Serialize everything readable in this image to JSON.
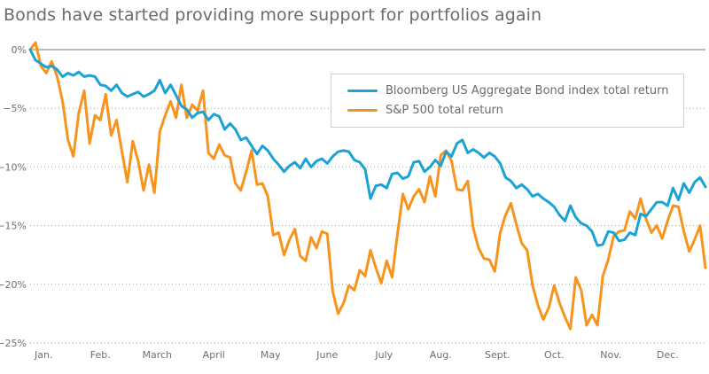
{
  "chart_data": {
    "type": "line",
    "title": "Bonds have started providing more support for portfolios again",
    "xlabel": "",
    "ylabel": "",
    "ylim": [
      -25,
      0
    ],
    "xlim": [
      0,
      250
    ],
    "yticks": [
      0,
      -5,
      -10,
      -15,
      -20,
      -25
    ],
    "ytick_labels": [
      "0%",
      "−5%",
      "−10%",
      "−15%",
      "−20%",
      "−25%"
    ],
    "xtick_labels": [
      "Jan.",
      "Feb.",
      "March",
      "April",
      "May",
      "June",
      "July",
      "Aug.",
      "Sept.",
      "Oct.",
      "Nov.",
      "Dec."
    ],
    "xtick_positions": [
      5,
      26,
      47,
      68,
      89,
      110,
      131,
      152,
      173,
      194,
      215,
      236
    ],
    "grid": "horizontal dotted",
    "legend_position": "top-right",
    "series": [
      {
        "name": "Bloomberg US Aggregate Bond index total return",
        "color": "#1aa3d4",
        "x": [
          0,
          2,
          4,
          6,
          8,
          10,
          12,
          14,
          16,
          18,
          20,
          22,
          24,
          26,
          28,
          30,
          32,
          34,
          36,
          38,
          40,
          42,
          44,
          46,
          48,
          50,
          52,
          54,
          56,
          58,
          60,
          62,
          64,
          66,
          68,
          70,
          72,
          74,
          76,
          78,
          80,
          82,
          84,
          86,
          88,
          90,
          92,
          94,
          96,
          98,
          100,
          102,
          104,
          106,
          108,
          110,
          112,
          114,
          116,
          118,
          120,
          122,
          124,
          126,
          128,
          130,
          132,
          134,
          136,
          138,
          140,
          142,
          144,
          146,
          148,
          150,
          152,
          154,
          156,
          158,
          160,
          162,
          164,
          166,
          168,
          170,
          172,
          174,
          176,
          178,
          180,
          182,
          184,
          186,
          188,
          190,
          192,
          194,
          196,
          198,
          200,
          202,
          204,
          206,
          208,
          210,
          212,
          214,
          216,
          218,
          220,
          222,
          224,
          226,
          228,
          230,
          232,
          234,
          236,
          238,
          240,
          242,
          244,
          246,
          248,
          250
        ],
        "values": [
          0,
          -0.9,
          -1.2,
          -1.5,
          -1.4,
          -1.7,
          -2.3,
          -2.0,
          -2.2,
          -1.9,
          -2.3,
          -2.2,
          -2.3,
          -3.0,
          -3.1,
          -3.5,
          -3.0,
          -3.7,
          -4.0,
          -3.8,
          -3.6,
          -4.0,
          -3.8,
          -3.5,
          -2.6,
          -3.7,
          -3.0,
          -3.9,
          -4.8,
          -5.1,
          -5.8,
          -5.4,
          -5.3,
          -6.0,
          -5.5,
          -5.7,
          -6.8,
          -6.3,
          -6.8,
          -7.7,
          -7.5,
          -8.2,
          -8.9,
          -8.2,
          -8.6,
          -9.3,
          -9.8,
          -10.4,
          -9.9,
          -9.6,
          -10.1,
          -9.3,
          -10.0,
          -9.5,
          -9.3,
          -9.7,
          -9.1,
          -8.7,
          -8.6,
          -8.7,
          -9.4,
          -9.6,
          -10.2,
          -12.7,
          -11.6,
          -11.5,
          -11.8,
          -10.6,
          -10.5,
          -11.0,
          -10.8,
          -9.6,
          -9.5,
          -10.4,
          -10.0,
          -9.4,
          -9.9,
          -8.7,
          -9.1,
          -8.0,
          -7.7,
          -8.8,
          -8.5,
          -8.8,
          -9.2,
          -8.8,
          -9.1,
          -9.7,
          -10.9,
          -11.2,
          -11.8,
          -11.5,
          -11.9,
          -12.5,
          -12.3,
          -12.7,
          -13.0,
          -13.4,
          -14.1,
          -14.6,
          -13.3,
          -14.3,
          -14.8,
          -15.0,
          -15.5,
          -16.7,
          -16.6,
          -15.5,
          -15.6,
          -16.3,
          -16.2,
          -15.6,
          -15.8,
          -14.0,
          -14.2,
          -13.6,
          -13.0,
          -13.0,
          -13.3,
          -11.8,
          -12.8,
          -11.4,
          -12.2,
          -11.3,
          -10.9,
          -11.7
        ]
      },
      {
        "name": "S&P 500 total return",
        "color": "#f7941d",
        "x": [
          0,
          2,
          4,
          6,
          8,
          10,
          12,
          14,
          16,
          18,
          20,
          22,
          24,
          26,
          28,
          30,
          32,
          34,
          36,
          38,
          40,
          42,
          44,
          46,
          48,
          50,
          52,
          54,
          56,
          58,
          60,
          62,
          64,
          66,
          68,
          70,
          72,
          74,
          76,
          78,
          80,
          82,
          84,
          86,
          88,
          90,
          92,
          94,
          96,
          98,
          100,
          102,
          104,
          106,
          108,
          110,
          112,
          114,
          116,
          118,
          120,
          122,
          124,
          126,
          128,
          130,
          132,
          134,
          136,
          138,
          140,
          142,
          144,
          146,
          148,
          150,
          152,
          154,
          156,
          158,
          160,
          162,
          164,
          166,
          168,
          170,
          172,
          174,
          176,
          178,
          180,
          182,
          184,
          186,
          188,
          190,
          192,
          194,
          196,
          198,
          200,
          202,
          204,
          206,
          208,
          210,
          212,
          214,
          216,
          218,
          220,
          222,
          224,
          226,
          228,
          230,
          232,
          234,
          236,
          238,
          240,
          242,
          244,
          246,
          248,
          250
        ],
        "values": [
          0,
          0.6,
          -1.4,
          -2.0,
          -1.0,
          -2.3,
          -4.4,
          -7.7,
          -9.1,
          -5.4,
          -3.5,
          -8.0,
          -5.6,
          -6.0,
          -3.8,
          -7.3,
          -6.0,
          -8.7,
          -11.3,
          -7.8,
          -9.5,
          -12.0,
          -9.8,
          -12.2,
          -7.0,
          -5.6,
          -4.4,
          -5.8,
          -3.0,
          -5.8,
          -4.7,
          -5.2,
          -3.5,
          -8.8,
          -9.3,
          -8.1,
          -9.0,
          -9.2,
          -11.4,
          -12.0,
          -10.4,
          -8.6,
          -11.5,
          -11.4,
          -12.5,
          -15.8,
          -15.6,
          -17.5,
          -16.2,
          -15.3,
          -17.6,
          -18.0,
          -16.0,
          -16.9,
          -15.5,
          -15.7,
          -20.6,
          -22.5,
          -21.6,
          -20.1,
          -20.5,
          -18.8,
          -19.3,
          -17.1,
          -18.6,
          -19.9,
          -18.0,
          -19.4,
          -15.7,
          -12.3,
          -13.6,
          -12.5,
          -11.9,
          -13.0,
          -10.8,
          -12.5,
          -9.0,
          -8.6,
          -9.5,
          -11.9,
          -12.0,
          -11.2,
          -15.2,
          -16.9,
          -17.8,
          -17.9,
          -18.9,
          -15.6,
          -14.1,
          -13.1,
          -14.9,
          -16.5,
          -17.1,
          -20.1,
          -21.8,
          -23.0,
          -22.0,
          -20.1,
          -21.6,
          -22.8,
          -23.8,
          -19.4,
          -20.5,
          -23.5,
          -22.6,
          -23.5,
          -19.3,
          -17.9,
          -15.9,
          -15.5,
          -15.4,
          -13.8,
          -14.4,
          -12.7,
          -14.4,
          -15.6,
          -15.0,
          -16.1,
          -14.6,
          -13.3,
          -13.4,
          -15.5,
          -17.2,
          -16.2,
          -15.0,
          -18.6
        ]
      }
    ]
  }
}
